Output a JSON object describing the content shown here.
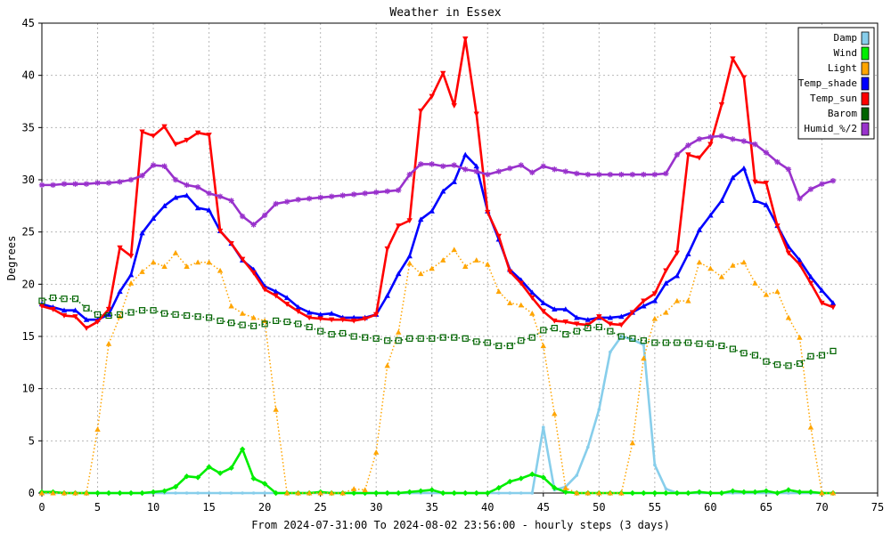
{
  "chart_data": {
    "type": "line",
    "title": "Weather in Essex",
    "xlabel": "From 2024-07-31:00 To 2024-08-02 23:56:00 - hourly steps (3 days)",
    "ylabel": "Degrees",
    "xlim": [
      0,
      75
    ],
    "ylim": [
      0,
      45
    ],
    "x_ticks": [
      "0",
      "5",
      "10",
      "15",
      "20",
      "25",
      "30",
      "35",
      "40",
      "45",
      "50",
      "55",
      "60",
      "65",
      "70",
      "75"
    ],
    "y_ticks": [
      "0",
      "5",
      "10",
      "15",
      "20",
      "25",
      "30",
      "35",
      "40",
      "45"
    ],
    "grid": true,
    "legend_position": "top-right",
    "series": [
      {
        "name": "Damp",
        "color": "#87ceeb",
        "style": "solid",
        "marker": "dot",
        "values": [
          0,
          0,
          0,
          0,
          0,
          0,
          0,
          0,
          0,
          0,
          0,
          0,
          0,
          0,
          0,
          0,
          0,
          0,
          0,
          0,
          0,
          0,
          0,
          0,
          0,
          0,
          0,
          0,
          0,
          0,
          0,
          0,
          0,
          0,
          0,
          0,
          0,
          0,
          0,
          0,
          0,
          0,
          0,
          0,
          0,
          6.3,
          0.3,
          0.6,
          1.7,
          4.4,
          8,
          13.5,
          15,
          14.7,
          14.2,
          2.7,
          0.4,
          0,
          0,
          0,
          0,
          0,
          0,
          0,
          0,
          0,
          0,
          0,
          0,
          0,
          0,
          0
        ]
      },
      {
        "name": "Wind",
        "color": "#00ee00",
        "style": "solid",
        "marker": "diamond",
        "values": [
          0.1,
          0.1,
          0,
          0,
          0,
          0,
          0,
          0,
          0,
          0,
          0.1,
          0.2,
          0.6,
          1.6,
          1.5,
          2.5,
          1.9,
          2.4,
          4.2,
          1.4,
          0.9,
          0,
          0,
          0,
          0,
          0.1,
          0,
          0,
          0,
          0,
          0,
          0,
          0,
          0.1,
          0.2,
          0.3,
          0,
          0,
          0,
          0,
          0,
          0.5,
          1.1,
          1.4,
          1.8,
          1.5,
          0.5,
          0.1,
          0,
          0,
          0,
          0,
          0,
          0,
          0,
          0,
          0,
          0,
          0,
          0.1,
          0,
          0,
          0.2,
          0.1,
          0.1,
          0.2,
          0,
          0.3,
          0.1,
          0.1,
          0,
          0
        ]
      },
      {
        "name": "Light",
        "color": "#ffa500",
        "style": "dotted",
        "marker": "triangle-up",
        "values": [
          0,
          0,
          0,
          0,
          0,
          6.1,
          14.3,
          16.9,
          20.1,
          21.2,
          22.1,
          21.7,
          23,
          21.7,
          22.1,
          22.1,
          21.3,
          17.9,
          17.2,
          16.8,
          16.5,
          8,
          0,
          0,
          0,
          0,
          0,
          0,
          0.4,
          0.3,
          3.9,
          12.2,
          15.4,
          22,
          21,
          21.5,
          22.3,
          23.3,
          21.7,
          22.3,
          21.9,
          19.3,
          18.2,
          18,
          17.2,
          14.1,
          7.6,
          0.5,
          0,
          0,
          0,
          0,
          0,
          4.8,
          12.9,
          16.7,
          17.3,
          18.4,
          18.4,
          22.1,
          21.5,
          20.7,
          21.8,
          22.1,
          20.1,
          19,
          19.3,
          16.8,
          14.9,
          6.3,
          0,
          0
        ]
      },
      {
        "name": "Temp_shade",
        "color": "#0000ff",
        "style": "solid",
        "marker": "triangle-up",
        "values": [
          18.1,
          17.8,
          17.5,
          17.5,
          16.6,
          16.6,
          17.1,
          19.3,
          20.9,
          24.9,
          26.3,
          27.5,
          28.3,
          28.5,
          27.3,
          27.1,
          25.1,
          23.9,
          22.3,
          21.4,
          19.8,
          19.3,
          18.7,
          17.8,
          17.3,
          17.1,
          17.2,
          16.8,
          16.8,
          16.8,
          17.1,
          18.9,
          21,
          22.7,
          26.2,
          27,
          28.9,
          29.8,
          32.4,
          31.3,
          27,
          24.3,
          21.4,
          20.4,
          19.2,
          18.2,
          17.6,
          17.6,
          16.8,
          16.6,
          16.8,
          16.8,
          16.9,
          17.3,
          17.9,
          18.4,
          20.1,
          20.8,
          22.9,
          25.2,
          26.6,
          28,
          30.2,
          31.1,
          28,
          27.6,
          25.6,
          23.6,
          22.3,
          20.7,
          19.4,
          18.2
        ]
      },
      {
        "name": "Temp_sun",
        "color": "#ff0000",
        "style": "solid",
        "marker": "triangle-down",
        "values": [
          17.9,
          17.6,
          17,
          16.9,
          15.8,
          16.4,
          17.6,
          23.5,
          22.7,
          34.6,
          34.2,
          35.1,
          33.4,
          33.8,
          34.5,
          34.3,
          25.1,
          23.9,
          22.4,
          21.1,
          19.5,
          18.9,
          18.1,
          17.4,
          16.8,
          16.7,
          16.6,
          16.6,
          16.5,
          16.7,
          17.1,
          23.4,
          25.6,
          26.1,
          36.6,
          38,
          40.2,
          37.1,
          43.5,
          36.3,
          26.9,
          24.6,
          21.2,
          20.1,
          18.7,
          17.4,
          16.5,
          16.4,
          16.2,
          16.1,
          16.9,
          16.2,
          16.1,
          17.3,
          18.4,
          19.1,
          21.3,
          23,
          32.4,
          32.1,
          33.4,
          37.2,
          41.6,
          39.8,
          29.8,
          29.7,
          25.6,
          23,
          21.9,
          20.1,
          18.2,
          17.8
        ]
      },
      {
        "name": "Barom",
        "color": "#006400",
        "style": "dotted",
        "marker": "square-open",
        "values": [
          18.4,
          18.7,
          18.6,
          18.6,
          17.7,
          17.1,
          17,
          17.1,
          17.3,
          17.5,
          17.5,
          17.2,
          17.1,
          17,
          16.9,
          16.8,
          16.5,
          16.3,
          16.1,
          16,
          16.2,
          16.5,
          16.4,
          16.2,
          15.9,
          15.5,
          15.2,
          15.3,
          15,
          14.9,
          14.8,
          14.6,
          14.6,
          14.8,
          14.8,
          14.8,
          14.9,
          14.9,
          14.8,
          14.5,
          14.4,
          14.1,
          14.1,
          14.6,
          14.9,
          15.6,
          15.8,
          15.2,
          15.5,
          15.8,
          15.9,
          15.5,
          15,
          14.8,
          14.6,
          14.4,
          14.4,
          14.4,
          14.4,
          14.3,
          14.3,
          14.1,
          13.8,
          13.4,
          13.2,
          12.6,
          12.3,
          12.2,
          12.4,
          13.1,
          13.2,
          13.6
        ]
      },
      {
        "name": "Humid_%/2",
        "color": "#9932cc",
        "style": "solid",
        "marker": "star",
        "values": [
          29.5,
          29.5,
          29.6,
          29.6,
          29.6,
          29.7,
          29.7,
          29.8,
          30,
          30.4,
          31.4,
          31.3,
          30,
          29.5,
          29.3,
          28.7,
          28.4,
          28,
          26.5,
          25.7,
          26.6,
          27.7,
          27.9,
          28.1,
          28.2,
          28.3,
          28.4,
          28.5,
          28.6,
          28.7,
          28.8,
          28.9,
          29,
          30.5,
          31.5,
          31.5,
          31.3,
          31.4,
          31,
          30.8,
          30.5,
          30.8,
          31.1,
          31.4,
          30.7,
          31.3,
          31,
          30.8,
          30.6,
          30.5,
          30.5,
          30.5,
          30.5,
          30.5,
          30.5,
          30.5,
          30.6,
          32.4,
          33.3,
          33.9,
          34.1,
          34.2,
          33.9,
          33.7,
          33.4,
          32.6,
          31.7,
          31,
          28.2,
          29.1,
          29.6,
          29.9
        ]
      }
    ]
  }
}
